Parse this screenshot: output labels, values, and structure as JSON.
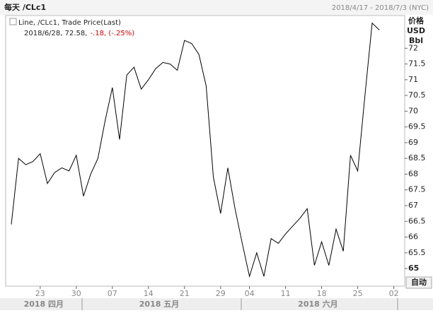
{
  "chart_data": {
    "type": "line",
    "title": "每天 /CLc1",
    "date_range": "2018/4/17 - 2018/7/3 (NYC)",
    "legend_line1": "Line, /CLc1, Trade Price(Last)",
    "legend_quote": "2018/6/28, 72.58,",
    "legend_change": "-.18, (-.25%)",
    "y_axis_labels": [
      "价格",
      "USD",
      "Bbl"
    ],
    "auto_button": "自动",
    "categories": [
      null,
      null,
      null,
      null,
      "23",
      null,
      null,
      null,
      null,
      "30",
      null,
      null,
      null,
      null,
      "07",
      null,
      null,
      null,
      null,
      "14",
      null,
      null,
      null,
      null,
      "21",
      null,
      null,
      null,
      null,
      "29",
      null,
      null,
      null,
      "04",
      null,
      null,
      null,
      null,
      "11",
      null,
      null,
      null,
      null,
      "18",
      null,
      null,
      null,
      null,
      "25",
      null,
      null,
      null,
      null,
      "02"
    ],
    "month_labels": [
      null,
      null,
      null,
      null,
      "2018 四月",
      null,
      null,
      null,
      null,
      null,
      null,
      null,
      null,
      null,
      null,
      null,
      null,
      null,
      null,
      null,
      "2018 五月",
      null,
      null,
      null,
      null,
      null,
      null,
      null,
      null,
      null,
      null,
      null,
      null,
      null,
      null,
      null,
      null,
      null,
      null,
      null,
      null,
      null,
      "2018 六月",
      null,
      null,
      null,
      null,
      null,
      null,
      null,
      null,
      null,
      null,
      null
    ],
    "series": [
      {
        "name": "/CLc1",
        "color": "#000000",
        "values": [
          66.4,
          68.5,
          68.3,
          68.4,
          68.65,
          67.7,
          68.05,
          68.2,
          68.1,
          68.6,
          67.3,
          68.0,
          68.5,
          69.7,
          70.75,
          69.1,
          71.15,
          71.4,
          70.7,
          71.0,
          71.35,
          71.55,
          71.5,
          71.3,
          72.25,
          72.15,
          71.8,
          70.8,
          67.9,
          66.75,
          68.2,
          66.9,
          65.8,
          64.75,
          65.5,
          64.75,
          65.95,
          65.8,
          66.1,
          66.35,
          66.6,
          66.9,
          65.1,
          65.85,
          65.1,
          66.25,
          65.55,
          68.6,
          68.1,
          70.5,
          72.8,
          72.58,
          null,
          null
        ]
      }
    ],
    "ylim": [
      64.44,
      73.04
    ],
    "yticks": [
      65,
      65.5,
      66,
      66.5,
      67,
      67.5,
      68,
      68.5,
      69,
      69.5,
      70,
      70.5,
      71,
      71.5,
      72
    ]
  }
}
